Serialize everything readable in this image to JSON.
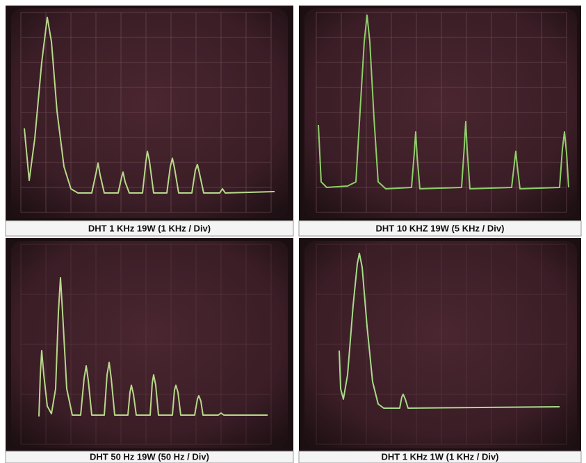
{
  "panels": [
    {
      "caption": "DHT 1 KHz 19W (1 KHz / Div)"
    },
    {
      "caption": "DHT 10 KHZ 19W (5 KHz / Div)"
    },
    {
      "caption": "DHT 50 Hz 19W (50 Hz / Div)"
    },
    {
      "caption": "DHT 1 KHz 1W (1 KHz / Div)"
    }
  ]
}
